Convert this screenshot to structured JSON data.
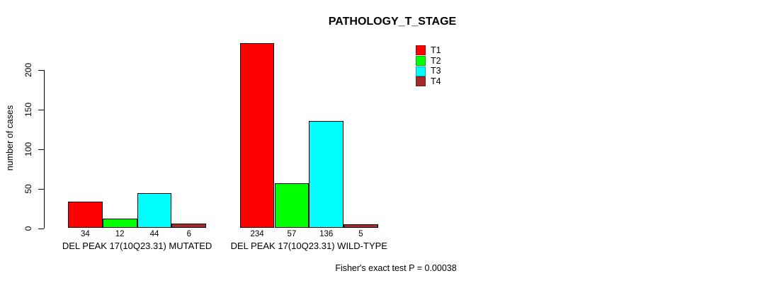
{
  "chart_data": {
    "type": "bar",
    "title": "PATHOLOGY_T_STAGE",
    "ylabel": "number of cases",
    "xlabel": "",
    "yticks": [
      0,
      50,
      100,
      150,
      200
    ],
    "ylim": [
      0,
      200
    ],
    "grid": false,
    "legend_position": "top-right",
    "categories": [
      "DEL PEAK 17(10Q23.31) MUTATED",
      "DEL PEAK 17(10Q23.31) WILD-TYPE"
    ],
    "series": [
      {
        "name": "T1",
        "color": "#ff0000",
        "values": [
          34,
          234
        ]
      },
      {
        "name": "T2",
        "color": "#00ff00",
        "values": [
          12,
          57
        ]
      },
      {
        "name": "T3",
        "color": "#00ffff",
        "values": [
          44,
          136
        ]
      },
      {
        "name": "T4",
        "color": "#a52a2a",
        "values": [
          6,
          5
        ]
      }
    ],
    "bar_value_labels": [
      [
        34,
        12,
        44,
        6
      ],
      [
        234,
        57,
        136,
        5
      ]
    ],
    "footnote": "Fisher's exact test P = 0.00038"
  }
}
